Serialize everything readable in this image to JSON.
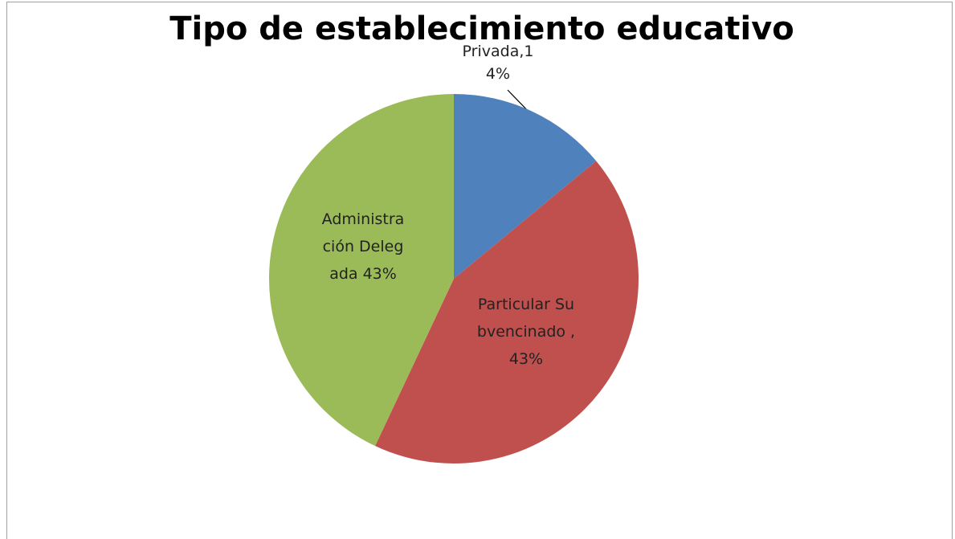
{
  "chart_data": {
    "type": "pie",
    "title": "Tipo de establecimiento educativo",
    "values": [
      14,
      43,
      43
    ],
    "value_labels": [
      "Privada,14%",
      "Particular Subvencinado ,43%",
      "Administración Delegada 43%"
    ],
    "colors": [
      "#4f81bd",
      "#c0504d",
      "#9bbb59"
    ]
  }
}
